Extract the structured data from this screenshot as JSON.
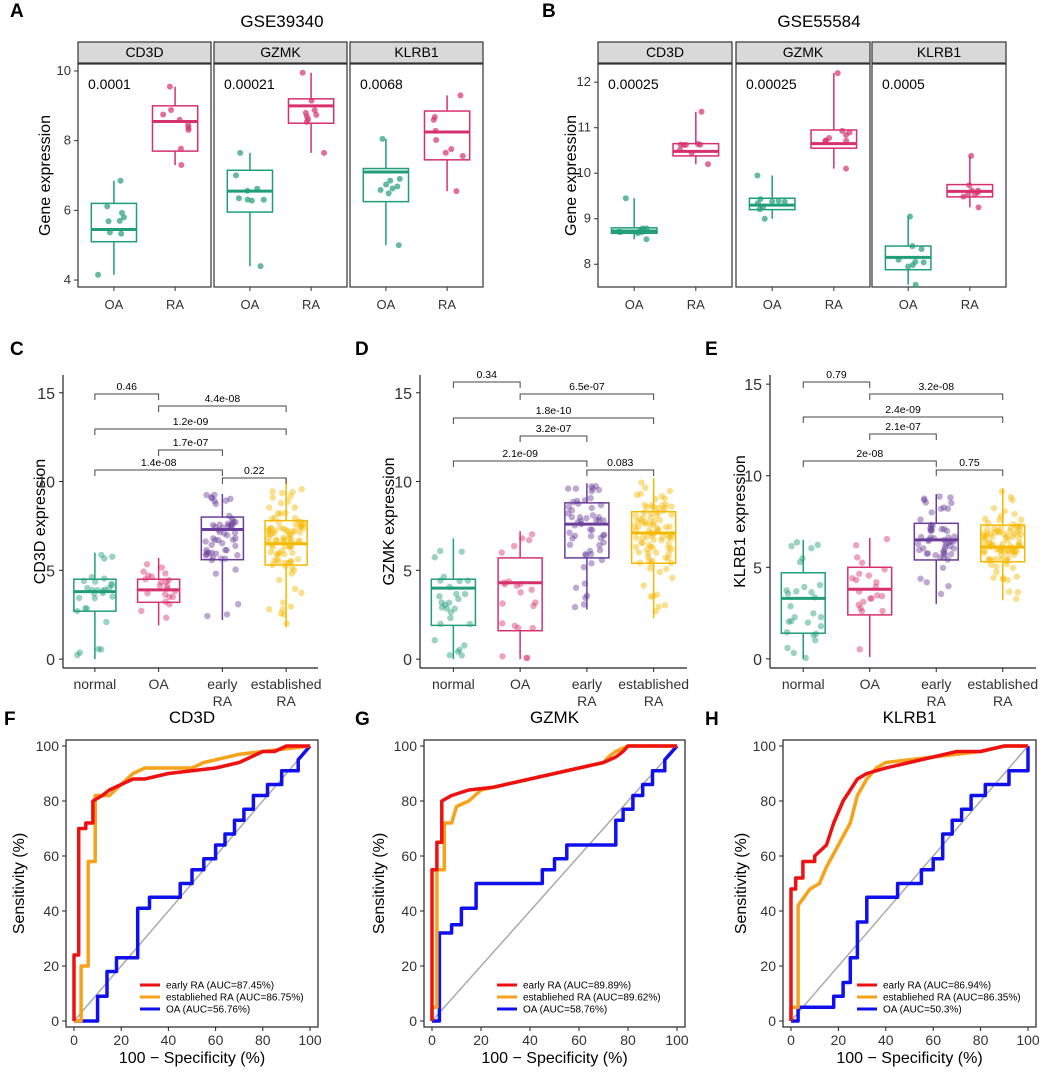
{
  "chart_data": [
    {
      "id": "A",
      "type": "boxplot",
      "title": "GSE39340",
      "ylabel": "Gene expression",
      "ylim": [
        3.8,
        10.2
      ],
      "yticks": [
        4,
        6,
        8,
        10
      ],
      "groups": [
        "OA",
        "RA"
      ],
      "colors": {
        "OA": "#1f9e77",
        "RA": "#d6316d"
      },
      "facets": [
        {
          "name": "CD3D",
          "p": "0.0001",
          "boxes": [
            {
              "group": "OA",
              "min": 4.15,
              "q1": 5.1,
              "median": 5.45,
              "q3": 6.2,
              "max": 6.85
            },
            {
              "group": "RA",
              "min": 7.3,
              "q1": 7.7,
              "median": 8.55,
              "q3": 9.0,
              "max": 9.55
            }
          ]
        },
        {
          "name": "GZMK",
          "p": "0.00021",
          "boxes": [
            {
              "group": "OA",
              "min": 4.4,
              "q1": 5.95,
              "median": 6.55,
              "q3": 7.15,
              "max": 7.65
            },
            {
              "group": "RA",
              "min": 7.65,
              "q1": 8.5,
              "median": 9.0,
              "q3": 9.2,
              "max": 9.95
            }
          ]
        },
        {
          "name": "KLRB1",
          "p": "0.0068",
          "boxes": [
            {
              "group": "OA",
              "min": 5.0,
              "q1": 6.25,
              "median": 7.1,
              "q3": 7.2,
              "max": 8.05
            },
            {
              "group": "RA",
              "min": 6.55,
              "q1": 7.45,
              "median": 8.25,
              "q3": 8.85,
              "max": 9.3
            }
          ]
        }
      ]
    },
    {
      "id": "B",
      "type": "boxplot",
      "title": "GSE55584",
      "ylabel": "Gene expression",
      "ylim": [
        7.5,
        12.4
      ],
      "yticks": [
        8,
        9,
        10,
        11,
        12
      ],
      "groups": [
        "OA",
        "RA"
      ],
      "colors": {
        "OA": "#1f9e77",
        "RA": "#d6316d"
      },
      "facets": [
        {
          "name": "CD3D",
          "p": "0.00025",
          "boxes": [
            {
              "group": "OA",
              "min": 8.55,
              "q1": 8.68,
              "median": 8.73,
              "q3": 8.8,
              "max": 9.45
            },
            {
              "group": "RA",
              "min": 10.2,
              "q1": 10.38,
              "median": 10.48,
              "q3": 10.65,
              "max": 11.35
            }
          ]
        },
        {
          "name": "GZMK",
          "p": "0.00025",
          "boxes": [
            {
              "group": "OA",
              "min": 9.0,
              "q1": 9.2,
              "median": 9.3,
              "q3": 9.45,
              "max": 9.95
            },
            {
              "group": "RA",
              "min": 10.1,
              "q1": 10.55,
              "median": 10.65,
              "q3": 10.95,
              "max": 12.2
            }
          ]
        },
        {
          "name": "KLRB1",
          "p": "0.0005",
          "boxes": [
            {
              "group": "OA",
              "min": 7.55,
              "q1": 7.88,
              "median": 8.15,
              "q3": 8.4,
              "max": 9.05
            },
            {
              "group": "RA",
              "min": 9.25,
              "q1": 9.48,
              "median": 9.6,
              "q3": 9.75,
              "max": 10.38
            }
          ]
        }
      ]
    },
    {
      "id": "C",
      "type": "boxplot",
      "ylabel": "CD3D expression",
      "ylim": [
        -0.5,
        16
      ],
      "yticks": [
        0,
        5,
        10,
        15
      ],
      "categories": [
        "normal",
        "OA",
        "early\nRA",
        "established\nRA"
      ],
      "colors": [
        "#1f9e77",
        "#d6316d",
        "#6a3d9a",
        "#f5b800"
      ],
      "boxes": [
        {
          "min": 0.0,
          "q1": 2.7,
          "median": 3.8,
          "q3": 4.5,
          "max": 6.0,
          "n": 28
        },
        {
          "min": 1.9,
          "q1": 3.2,
          "median": 3.9,
          "q3": 4.5,
          "max": 5.7,
          "n": 22
        },
        {
          "min": 2.2,
          "q1": 5.6,
          "median": 7.3,
          "q3": 8.0,
          "max": 9.3,
          "n": 55
        },
        {
          "min": 1.8,
          "q1": 5.3,
          "median": 6.5,
          "q3": 7.8,
          "max": 10.2,
          "n": 90
        }
      ],
      "comparisons": [
        {
          "a": 0,
          "b": 1,
          "label": "0.46"
        },
        {
          "a": 1,
          "b": 3,
          "label": "4.4e-08"
        },
        {
          "a": 0,
          "b": 3,
          "label": "1.2e-09"
        },
        {
          "a": 1,
          "b": 2,
          "label": "1.7e-07"
        },
        {
          "a": 0,
          "b": 2,
          "label": "1.4e-08"
        },
        {
          "a": 2,
          "b": 3,
          "label": "0.22"
        }
      ]
    },
    {
      "id": "D",
      "type": "boxplot",
      "ylabel": "GZMK expression",
      "ylim": [
        -0.5,
        16
      ],
      "yticks": [
        0,
        5,
        10,
        15
      ],
      "categories": [
        "normal",
        "OA",
        "early\nRA",
        "established\nRA"
      ],
      "colors": [
        "#1f9e77",
        "#d6316d",
        "#6a3d9a",
        "#f5b800"
      ],
      "boxes": [
        {
          "min": 0.0,
          "q1": 1.9,
          "median": 4.0,
          "q3": 4.5,
          "max": 6.8,
          "n": 28
        },
        {
          "min": 0.0,
          "q1": 1.6,
          "median": 4.3,
          "q3": 5.7,
          "max": 7.2,
          "n": 22
        },
        {
          "min": 2.8,
          "q1": 5.7,
          "median": 7.6,
          "q3": 8.8,
          "max": 9.9,
          "n": 55
        },
        {
          "min": 2.3,
          "q1": 5.4,
          "median": 7.1,
          "q3": 8.3,
          "max": 10.2,
          "n": 90
        }
      ],
      "comparisons": [
        {
          "a": 0,
          "b": 1,
          "label": "0.34"
        },
        {
          "a": 1,
          "b": 3,
          "label": "6.5e-07"
        },
        {
          "a": 0,
          "b": 3,
          "label": "1.8e-10"
        },
        {
          "a": 1,
          "b": 2,
          "label": "3.2e-07"
        },
        {
          "a": 0,
          "b": 2,
          "label": "2.1e-09"
        },
        {
          "a": 2,
          "b": 3,
          "label": "0.083"
        }
      ]
    },
    {
      "id": "E",
      "type": "boxplot",
      "ylabel": "KLRB1 expression",
      "ylim": [
        -0.5,
        15.5
      ],
      "yticks": [
        0,
        5,
        10,
        15
      ],
      "categories": [
        "normal",
        "OA",
        "early\nRA",
        "established\nRA"
      ],
      "colors": [
        "#1f9e77",
        "#d6316d",
        "#6a3d9a",
        "#f5b800"
      ],
      "boxes": [
        {
          "min": 0.0,
          "q1": 1.4,
          "median": 3.3,
          "q3": 4.7,
          "max": 6.5,
          "n": 28
        },
        {
          "min": 0.1,
          "q1": 2.4,
          "median": 3.8,
          "q3": 5.0,
          "max": 6.6,
          "n": 22
        },
        {
          "min": 3.0,
          "q1": 5.4,
          "median": 6.5,
          "q3": 7.4,
          "max": 9.0,
          "n": 55
        },
        {
          "min": 3.2,
          "q1": 5.3,
          "median": 6.1,
          "q3": 7.3,
          "max": 9.3,
          "n": 90
        }
      ],
      "comparisons": [
        {
          "a": 0,
          "b": 1,
          "label": "0.79"
        },
        {
          "a": 1,
          "b": 3,
          "label": "3.2e-08"
        },
        {
          "a": 0,
          "b": 3,
          "label": "2.4e-09"
        },
        {
          "a": 1,
          "b": 2,
          "label": "2.1e-07"
        },
        {
          "a": 0,
          "b": 2,
          "label": "2e-08"
        },
        {
          "a": 2,
          "b": 3,
          "label": "0.75"
        }
      ]
    },
    {
      "id": "F",
      "type": "line",
      "title": "CD3D",
      "xlabel": "100 − Specificity (%)",
      "ylabel": "Sensitivity (%)",
      "xlim": [
        0,
        100
      ],
      "ylim": [
        0,
        100
      ],
      "ticks": [
        0,
        20,
        40,
        60,
        80,
        100
      ],
      "series": [
        {
          "name": "early RA (AUC=87.45%)",
          "color": "#ee1111",
          "x": [
            0,
            0,
            2,
            2,
            5,
            5,
            8,
            8,
            12,
            15,
            20,
            25,
            30,
            40,
            50,
            60,
            70,
            75,
            80,
            85,
            90,
            100
          ],
          "y": [
            0,
            24,
            24,
            70,
            70,
            72,
            72,
            80,
            82,
            84,
            86,
            88,
            88,
            90,
            91,
            92,
            94,
            96,
            98,
            98,
            100,
            100
          ]
        },
        {
          "name": "establiehed RA (AUC=86.75%)",
          "color": "#f7a21b",
          "x": [
            0,
            3,
            3,
            6,
            6,
            9,
            9,
            15,
            20,
            25,
            30,
            35,
            40,
            50,
            55,
            60,
            70,
            80,
            90,
            100
          ],
          "y": [
            0,
            0,
            20,
            20,
            58,
            58,
            82,
            82,
            86,
            90,
            92,
            92,
            92,
            92,
            94,
            95,
            97,
            98,
            99,
            100
          ]
        },
        {
          "name": "OA (AUC=56.76%)",
          "color": "#1010ee",
          "x": [
            0,
            10,
            10,
            14,
            14,
            18,
            18,
            27,
            27,
            32,
            32,
            45,
            45,
            50,
            50,
            55,
            55,
            60,
            60,
            64,
            64,
            68,
            68,
            72,
            72,
            76,
            76,
            82,
            82,
            88,
            88,
            95,
            95,
            100
          ],
          "y": [
            0,
            0,
            9,
            9,
            18,
            18,
            23,
            23,
            41,
            41,
            45,
            45,
            50,
            50,
            55,
            55,
            59,
            59,
            64,
            64,
            68,
            68,
            73,
            73,
            77,
            77,
            82,
            82,
            86,
            86,
            91,
            91,
            95,
            100
          ]
        }
      ]
    },
    {
      "id": "G",
      "type": "line",
      "title": "GZMK",
      "xlabel": "100 − Specificity (%)",
      "ylabel": "Sensitivity (%)",
      "xlim": [
        0,
        100
      ],
      "ylim": [
        0,
        100
      ],
      "ticks": [
        0,
        20,
        40,
        60,
        80,
        100
      ],
      "series": [
        {
          "name": "early RA (AUC=89.89%)",
          "color": "#ee1111",
          "x": [
            0,
            0,
            2,
            2,
            4,
            4,
            8,
            15,
            25,
            30,
            40,
            50,
            60,
            70,
            75,
            78,
            80,
            85,
            100
          ],
          "y": [
            0,
            55,
            55,
            65,
            65,
            80,
            82,
            84,
            85,
            86,
            88,
            90,
            92,
            94,
            96,
            98,
            100,
            100,
            100
          ]
        },
        {
          "name": "establiehed RA (AUC=89.62%)",
          "color": "#f7a21b",
          "x": [
            0,
            0,
            2,
            2,
            5,
            5,
            8,
            10,
            15,
            20,
            30,
            40,
            50,
            60,
            70,
            72,
            75,
            80,
            90,
            100
          ],
          "y": [
            0,
            5,
            5,
            55,
            55,
            72,
            72,
            78,
            80,
            84,
            86,
            88,
            90,
            92,
            94,
            96,
            98,
            100,
            100,
            100
          ]
        },
        {
          "name": "OA (AUC=58.76%)",
          "color": "#1010ee",
          "x": [
            0,
            3,
            3,
            8,
            8,
            12,
            12,
            18,
            18,
            45,
            45,
            50,
            50,
            55,
            55,
            60,
            60,
            75,
            75,
            78,
            78,
            82,
            82,
            86,
            86,
            90,
            90,
            95,
            95,
            100
          ],
          "y": [
            0,
            0,
            32,
            32,
            35,
            35,
            41,
            41,
            50,
            50,
            55,
            55,
            59,
            59,
            64,
            64,
            64,
            64,
            73,
            73,
            77,
            77,
            82,
            82,
            86,
            86,
            91,
            91,
            95,
            100
          ]
        }
      ]
    },
    {
      "id": "H",
      "type": "line",
      "title": "KLRB1",
      "xlabel": "100 − Specificity (%)",
      "ylabel": "Sensitivity (%)",
      "xlim": [
        0,
        100
      ],
      "ylim": [
        0,
        100
      ],
      "ticks": [
        0,
        20,
        40,
        60,
        80,
        100
      ],
      "series": [
        {
          "name": "early RA (AUC=86.94%)",
          "color": "#ee1111",
          "x": [
            0,
            0,
            2,
            2,
            5,
            5,
            10,
            10,
            15,
            18,
            22,
            25,
            28,
            32,
            40,
            50,
            60,
            70,
            80,
            90,
            100
          ],
          "y": [
            0,
            48,
            48,
            52,
            52,
            58,
            58,
            60,
            64,
            72,
            80,
            84,
            88,
            90,
            92,
            94,
            96,
            98,
            98,
            100,
            100
          ]
        },
        {
          "name": "establiehed RA (AUC=86.35%)",
          "color": "#f7a21b",
          "x": [
            0,
            0,
            3,
            3,
            8,
            12,
            15,
            20,
            25,
            28,
            32,
            36,
            40,
            50,
            60,
            70,
            80,
            90,
            100
          ],
          "y": [
            0,
            5,
            5,
            42,
            48,
            50,
            56,
            64,
            72,
            82,
            88,
            92,
            94,
            95,
            96,
            97,
            98,
            100,
            100
          ]
        },
        {
          "name": "OA (AUC=50.3%)",
          "color": "#1010ee",
          "x": [
            0,
            3,
            3,
            18,
            18,
            22,
            22,
            25,
            25,
            28,
            28,
            32,
            32,
            45,
            45,
            55,
            55,
            60,
            60,
            64,
            64,
            68,
            68,
            72,
            72,
            76,
            76,
            82,
            82,
            92,
            92,
            100,
            100
          ],
          "y": [
            0,
            0,
            5,
            5,
            9,
            9,
            14,
            14,
            23,
            23,
            36,
            36,
            45,
            45,
            50,
            50,
            55,
            55,
            59,
            59,
            68,
            68,
            73,
            73,
            77,
            77,
            82,
            82,
            86,
            86,
            91,
            91,
            100
          ]
        }
      ]
    }
  ]
}
